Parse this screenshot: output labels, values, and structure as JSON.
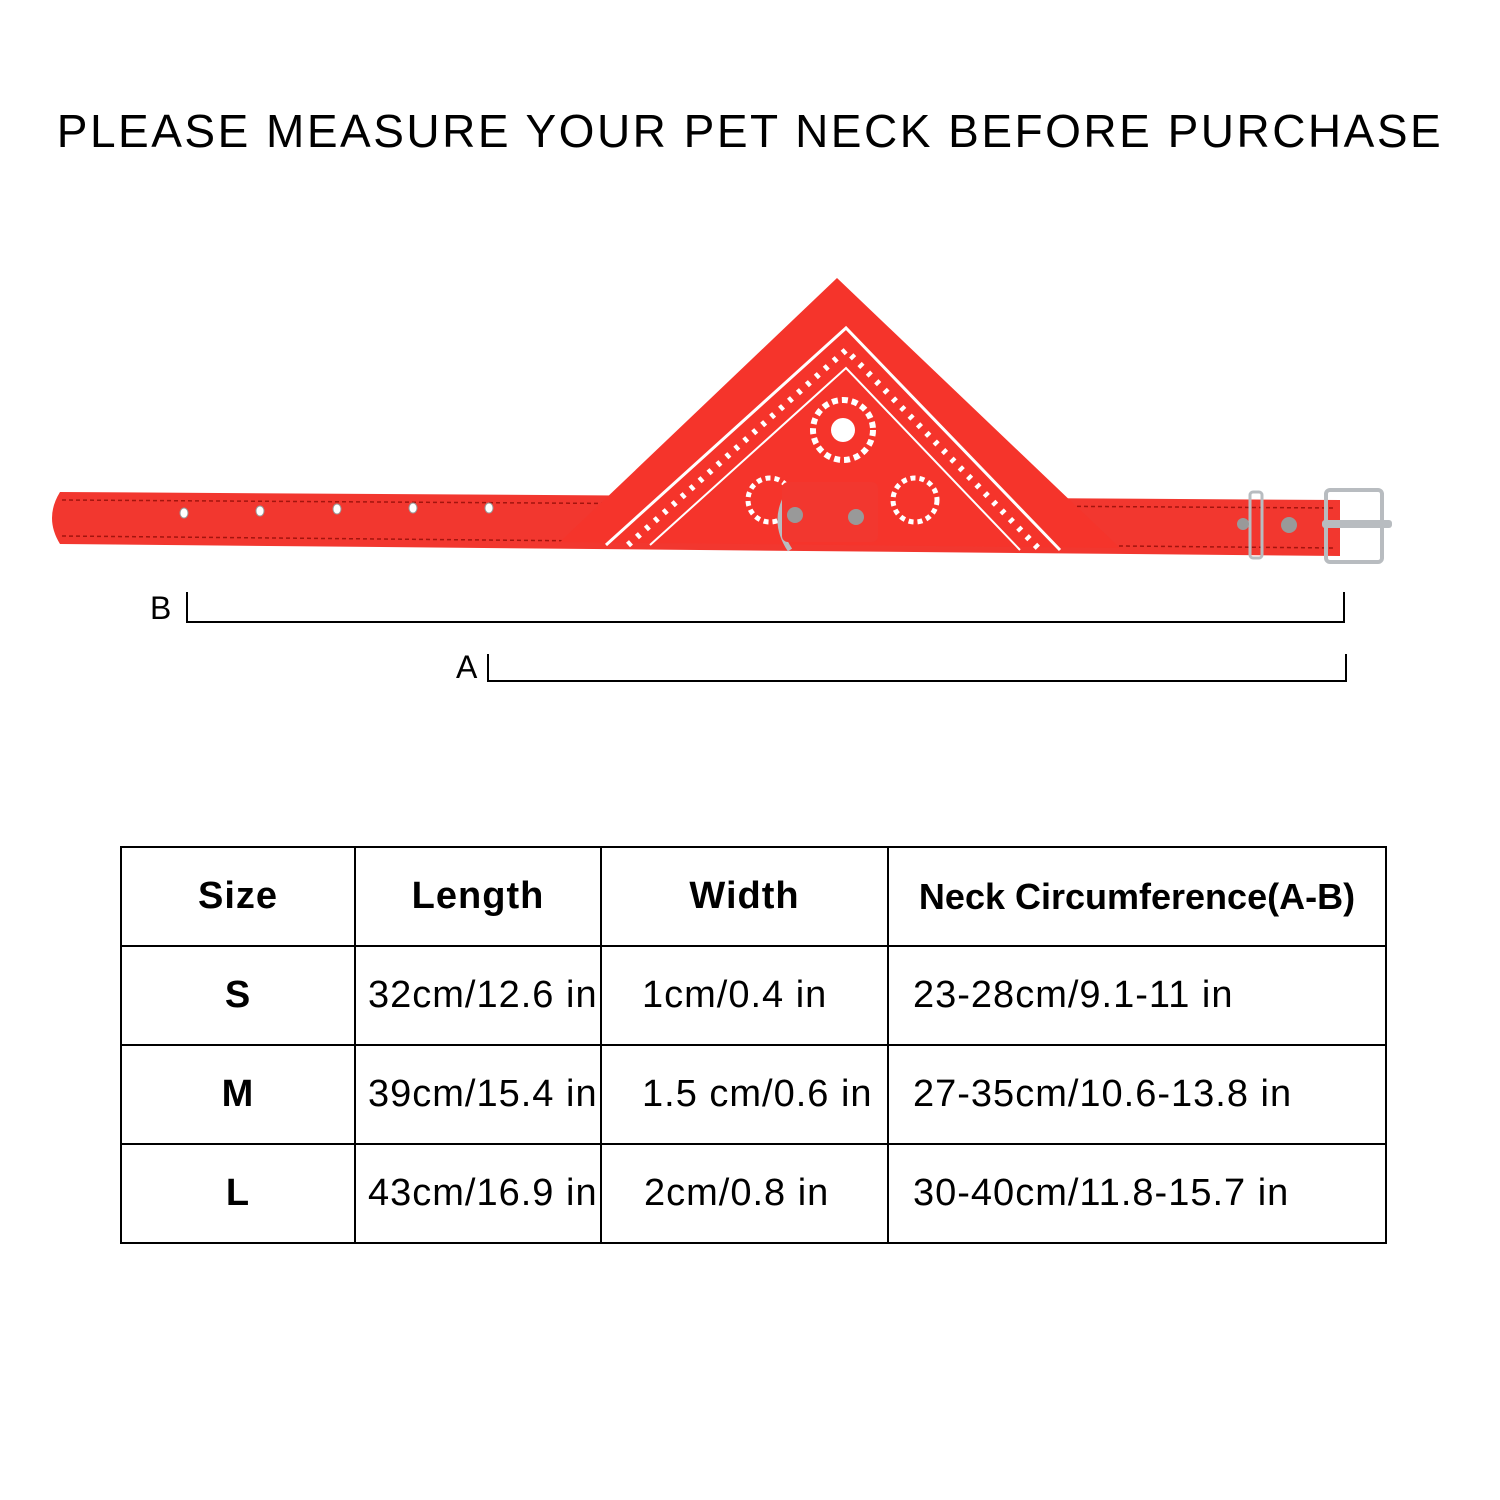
{
  "title": "PLEASE MEASURE YOUR PET NECK BEFORE PURCHASE",
  "diagram": {
    "label_b": "B",
    "label_a": "A",
    "colors": {
      "collar": "#f2372f",
      "bandana": "#f5342b",
      "pattern": "#ffffff",
      "metal": "#b8bcc0"
    }
  },
  "table": {
    "headers": [
      "Size",
      "Length",
      "Width",
      "Neck Circumference(A-B)"
    ],
    "rows": [
      [
        "S",
        "32cm/12.6 in",
        "1cm/0.4 in",
        "23-28cm/9.1-11 in"
      ],
      [
        "M",
        "39cm/15.4 in",
        "1.5 cm/0.6 in",
        "27-35cm/10.6-13.8 in"
      ],
      [
        "L",
        "43cm/16.9 in",
        "2cm/0.8 in",
        "30-40cm/11.8-15.7 in"
      ]
    ]
  }
}
